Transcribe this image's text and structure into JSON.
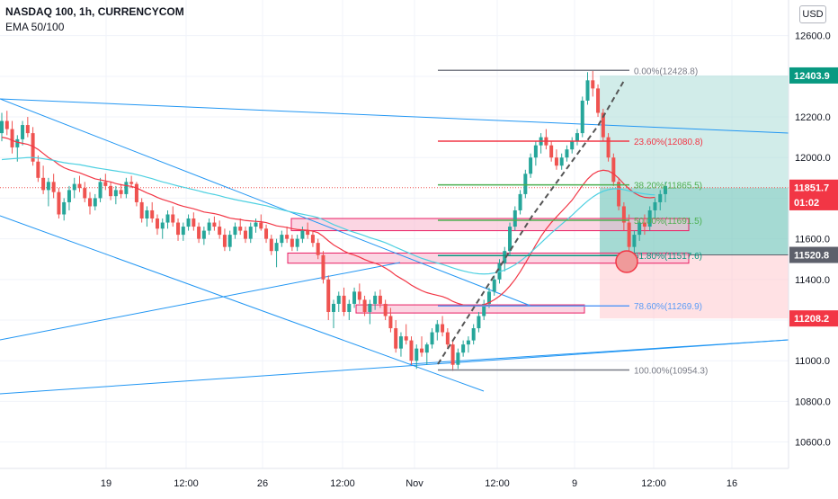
{
  "header": {
    "title": "NASDAQ 100, 1h, CURRENCYCOM",
    "indicator": "EMA 50/100"
  },
  "currency_button": "USD",
  "colors": {
    "up_candle": "#26a69a",
    "down_candle": "#ef5350",
    "trendline": "#2196f3",
    "ema50": "#f23645",
    "ema100": "#4dd0e1",
    "fib_0": "#787b86",
    "fib_236": "#f23645",
    "fib_382": "#4caf50",
    "fib_618": "#089981",
    "fib_786": "#5b9cf6",
    "profit_zone": "#b2dfdb",
    "stop_zone": "#ffcdd2",
    "price_label": "#131722"
  },
  "chart_data": {
    "type": "candlestick",
    "title": "NASDAQ 100, 1h, CURRENCYCOM",
    "ylim": [
      10470,
      12720
    ],
    "y_ticks": [
      10600.0,
      10800.0,
      11000.0,
      11200.0,
      11400.0,
      11600.0,
      11800.0,
      12000.0,
      12200.0,
      12400.0,
      12600.0
    ],
    "x_ticks": [
      "19",
      "12:00",
      "26",
      "12:00",
      "Nov",
      "12:00",
      "9",
      "12:00",
      "16"
    ],
    "fib_levels": [
      {
        "label": "0.00%(12428.8)",
        "ratio": 0.0,
        "price": 12428.8
      },
      {
        "label": "23.60%(12080.8)",
        "ratio": 0.236,
        "price": 12080.8
      },
      {
        "label": "38.20%(11865.5)",
        "ratio": 0.382,
        "price": 11865.5
      },
      {
        "label": "50.00%(11691.5)",
        "ratio": 0.5,
        "price": 11691.5
      },
      {
        "label": "61.80%(11517.6)",
        "ratio": 0.618,
        "price": 11517.6
      },
      {
        "label": "78.60%(11269.9)",
        "ratio": 0.786,
        "price": 11269.9
      },
      {
        "label": "100.00%(10954.3)",
        "ratio": 1.0,
        "price": 10954.3
      }
    ],
    "price_labels": [
      {
        "text": "12403.9",
        "price": 12403.9,
        "color": "#089981"
      },
      {
        "text": "11851.7",
        "price": 11851.7,
        "color": "#f23645"
      },
      {
        "text": "01:02",
        "price": 11780,
        "color": "#f23645"
      },
      {
        "text": "11520.8",
        "price": 11520.8,
        "color": "#5d606b"
      },
      {
        "text": "11208.2",
        "price": 11208.2,
        "color": "#f23645"
      }
    ],
    "position": {
      "target": 12403.9,
      "entry": 11520.8,
      "stop": 11208.2
    },
    "series": [
      {
        "type": "ohlc",
        "bars": [
          [
            12120,
            12220,
            12080,
            12180
          ],
          [
            12180,
            12230,
            12110,
            12140
          ],
          [
            12140,
            12180,
            12020,
            12050
          ],
          [
            12050,
            12110,
            11980,
            12090
          ],
          [
            12090,
            12180,
            12060,
            12160
          ],
          [
            12160,
            12200,
            12100,
            12120
          ],
          [
            12120,
            12150,
            11960,
            11980
          ],
          [
            11980,
            12010,
            11880,
            11900
          ],
          [
            11900,
            11960,
            11820,
            11840
          ],
          [
            11840,
            11900,
            11760,
            11880
          ],
          [
            11880,
            11920,
            11800,
            11830
          ],
          [
            11830,
            11850,
            11700,
            11720
          ],
          [
            11720,
            11800,
            11690,
            11780
          ],
          [
            11780,
            11860,
            11740,
            11840
          ],
          [
            11840,
            11900,
            11800,
            11870
          ],
          [
            11870,
            11910,
            11830,
            11850
          ],
          [
            11850,
            11880,
            11780,
            11800
          ],
          [
            11800,
            11830,
            11720,
            11760
          ],
          [
            11760,
            11820,
            11740,
            11800
          ],
          [
            11800,
            11900,
            11780,
            11880
          ],
          [
            11880,
            11920,
            11840,
            11860
          ],
          [
            11860,
            11880,
            11790,
            11810
          ],
          [
            11810,
            11860,
            11770,
            11840
          ],
          [
            11840,
            11870,
            11800,
            11820
          ],
          [
            11820,
            11900,
            11800,
            11880
          ],
          [
            11880,
            11910,
            11850,
            11870
          ],
          [
            11870,
            11880,
            11760,
            11780
          ],
          [
            11780,
            11800,
            11680,
            11700
          ],
          [
            11700,
            11760,
            11660,
            11740
          ],
          [
            11740,
            11780,
            11680,
            11700
          ],
          [
            11700,
            11720,
            11620,
            11650
          ],
          [
            11650,
            11700,
            11600,
            11680
          ],
          [
            11680,
            11740,
            11650,
            11720
          ],
          [
            11720,
            11760,
            11660,
            11680
          ],
          [
            11680,
            11700,
            11590,
            11620
          ],
          [
            11620,
            11680,
            11590,
            11660
          ],
          [
            11660,
            11720,
            11640,
            11700
          ],
          [
            11700,
            11730,
            11640,
            11660
          ],
          [
            11660,
            11680,
            11580,
            11600
          ],
          [
            11600,
            11660,
            11570,
            11640
          ],
          [
            11640,
            11700,
            11620,
            11680
          ],
          [
            11680,
            11710,
            11640,
            11660
          ],
          [
            11660,
            11690,
            11600,
            11620
          ],
          [
            11620,
            11650,
            11540,
            11560
          ],
          [
            11560,
            11640,
            11540,
            11620
          ],
          [
            11620,
            11680,
            11600,
            11660
          ],
          [
            11660,
            11700,
            11620,
            11640
          ],
          [
            11640,
            11660,
            11580,
            11600
          ],
          [
            11600,
            11680,
            11580,
            11660
          ],
          [
            11660,
            11700,
            11630,
            11680
          ],
          [
            11680,
            11720,
            11640,
            11650
          ],
          [
            11650,
            11670,
            11580,
            11600
          ],
          [
            11600,
            11620,
            11520,
            11540
          ],
          [
            11540,
            11600,
            11460,
            11580
          ],
          [
            11580,
            11640,
            11560,
            11620
          ],
          [
            11620,
            11660,
            11580,
            11600
          ],
          [
            11600,
            11620,
            11540,
            11560
          ],
          [
            11560,
            11620,
            11540,
            11600
          ],
          [
            11600,
            11660,
            11580,
            11640
          ],
          [
            11640,
            11680,
            11600,
            11620
          ],
          [
            11620,
            11640,
            11560,
            11580
          ],
          [
            11580,
            11600,
            11500,
            11520
          ],
          [
            11520,
            11540,
            11380,
            11400
          ],
          [
            11400,
            11420,
            11200,
            11240
          ],
          [
            11240,
            11300,
            11160,
            11280
          ],
          [
            11280,
            11340,
            11240,
            11320
          ],
          [
            11320,
            11360,
            11220,
            11240
          ],
          [
            11240,
            11300,
            11200,
            11280
          ],
          [
            11280,
            11360,
            11260,
            11340
          ],
          [
            11340,
            11380,
            11280,
            11300
          ],
          [
            11300,
            11320,
            11220,
            11240
          ],
          [
            11240,
            11300,
            11180,
            11280
          ],
          [
            11280,
            11340,
            11250,
            11320
          ],
          [
            11320,
            11350,
            11260,
            11280
          ],
          [
            11280,
            11300,
            11200,
            11220
          ],
          [
            11220,
            11260,
            11140,
            11160
          ],
          [
            11160,
            11200,
            11040,
            11060
          ],
          [
            11060,
            11140,
            11020,
            11120
          ],
          [
            11120,
            11180,
            11080,
            11100
          ],
          [
            11100,
            11120,
            10980,
            11000
          ],
          [
            11000,
            11080,
            10960,
            11060
          ],
          [
            11060,
            11120,
            11020,
            11040
          ],
          [
            11040,
            11090,
            10980,
            11080
          ],
          [
            11080,
            11160,
            11060,
            11140
          ],
          [
            11140,
            11200,
            11100,
            11180
          ],
          [
            11180,
            11220,
            11120,
            11140
          ],
          [
            11140,
            11160,
            11060,
            11080
          ],
          [
            11080,
            11100,
            10950,
            10980
          ],
          [
            10980,
            11060,
            10960,
            11040
          ],
          [
            11040,
            11100,
            11020,
            11080
          ],
          [
            11080,
            11120,
            11040,
            11100
          ],
          [
            11100,
            11180,
            11080,
            11160
          ],
          [
            11160,
            11240,
            11140,
            11220
          ],
          [
            11220,
            11300,
            11200,
            11280
          ],
          [
            11280,
            11360,
            11260,
            11340
          ],
          [
            11340,
            11420,
            11320,
            11400
          ],
          [
            11400,
            11500,
            11380,
            11480
          ],
          [
            11480,
            11560,
            11440,
            11540
          ],
          [
            11540,
            11680,
            11520,
            11660
          ],
          [
            11660,
            11760,
            11640,
            11740
          ],
          [
            11740,
            11840,
            11720,
            11820
          ],
          [
            11820,
            11940,
            11800,
            11920
          ],
          [
            11920,
            12020,
            11900,
            12000
          ],
          [
            12000,
            12080,
            11960,
            12060
          ],
          [
            12060,
            12120,
            12020,
            12100
          ],
          [
            12100,
            12140,
            12040,
            12060
          ],
          [
            12060,
            12080,
            11980,
            12000
          ],
          [
            12000,
            12040,
            11940,
            11960
          ],
          [
            11960,
            12020,
            11940,
            12000
          ],
          [
            12000,
            12060,
            11980,
            12040
          ],
          [
            12040,
            12100,
            12020,
            12080
          ],
          [
            12080,
            12140,
            12060,
            12120
          ],
          [
            12120,
            12300,
            12100,
            12280
          ],
          [
            12280,
            12420,
            12260,
            12380
          ],
          [
            12380,
            12430,
            12300,
            12340
          ],
          [
            12340,
            12360,
            12200,
            12220
          ],
          [
            12220,
            12240,
            12080,
            12100
          ],
          [
            12100,
            12120,
            11980,
            12000
          ],
          [
            12000,
            12020,
            11860,
            11880
          ],
          [
            11880,
            11900,
            11740,
            11760
          ],
          [
            11760,
            11780,
            11640,
            11680
          ],
          [
            11680,
            11720,
            11540,
            11560
          ],
          [
            11560,
            11640,
            11500,
            11620
          ],
          [
            11620,
            11700,
            11590,
            11680
          ],
          [
            11680,
            11720,
            11620,
            11660
          ],
          [
            11660,
            11760,
            11640,
            11740
          ],
          [
            11740,
            11800,
            11700,
            11780
          ],
          [
            11780,
            11840,
            11740,
            11820
          ],
          [
            11820,
            11880,
            11780,
            11860
          ]
        ]
      },
      {
        "name": "",
        "type": "line",
        "values": [
          12100,
          12095,
          12085,
          12075,
          12070,
          12065,
          12055,
          12040,
          12020,
          12000,
          11985,
          11965,
          11950,
          11940,
          11932,
          11925,
          11915,
          11905,
          11895,
          11890,
          11885,
          11880,
          11872,
          11866,
          11862,
          11858,
          11850,
          11838,
          11826,
          11816,
          11804,
          11794,
          11786,
          11778,
          11768,
          11760,
          11754,
          11748,
          11740,
          11732,
          11728,
          11724,
          11718,
          11710,
          11702,
          11698,
          11695,
          11690,
          11688,
          11686,
          11684,
          11680,
          11672,
          11664,
          11660,
          11656,
          11650,
          11646,
          11644,
          11642,
          11638,
          11630,
          11612,
          11590,
          11570,
          11555,
          11540,
          11528,
          11520,
          11510,
          11498,
          11488,
          11480,
          11470,
          11456,
          11440,
          11420,
          11405,
          11390,
          11372,
          11358,
          11345,
          11335,
          11328,
          11322,
          11316,
          11306,
          11292,
          11282,
          11275,
          11270,
          11268,
          11270,
          11276,
          11286,
          11300,
          11318,
          11340,
          11368,
          11400,
          11438,
          11480,
          11525,
          11570,
          11612,
          11648,
          11680,
          11708,
          11735,
          11762,
          11790,
          11826,
          11862,
          11894,
          11918,
          11932,
          11938,
          11934,
          11920,
          11898,
          11870,
          11846,
          11826,
          11812,
          11804,
          11802,
          11804
        ]
      },
      {
        "name": "",
        "type": "line",
        "values": [
          11990,
          11992,
          11994,
          11996,
          11998,
          12000,
          12000,
          11998,
          11994,
          11990,
          11986,
          11980,
          11975,
          11971,
          11968,
          11965,
          11960,
          11955,
          11950,
          11946,
          11942,
          11938,
          11934,
          11930,
          11926,
          11922,
          11916,
          11910,
          11903,
          11896,
          11888,
          11880,
          11874,
          11867,
          11860,
          11854,
          11848,
          11842,
          11836,
          11829,
          11823,
          11818,
          11812,
          11805,
          11799,
          11793,
          11788,
          11783,
          11778,
          11773,
          11768,
          11763,
          11756,
          11749,
          11743,
          11737,
          11731,
          11726,
          11721,
          11716,
          11711,
          11704,
          11694,
          11682,
          11670,
          11660,
          11650,
          11640,
          11632,
          11624,
          11615,
          11606,
          11598,
          11590,
          11581,
          11570,
          11558,
          11547,
          11536,
          11525,
          11514,
          11504,
          11496,
          11488,
          11481,
          11474,
          11466,
          11457,
          11449,
          11442,
          11436,
          11431,
          11428,
          11427,
          11428,
          11432,
          11438,
          11446,
          11458,
          11472,
          11490,
          11510,
          11532,
          11556,
          11580,
          11604,
          11628,
          11650,
          11672,
          11694,
          11716,
          11740,
          11764,
          11786,
          11806,
          11822,
          11834,
          11842,
          11846,
          11846,
          11842,
          11836,
          11830,
          11825,
          11821,
          11818,
          11816
        ]
      }
    ]
  }
}
